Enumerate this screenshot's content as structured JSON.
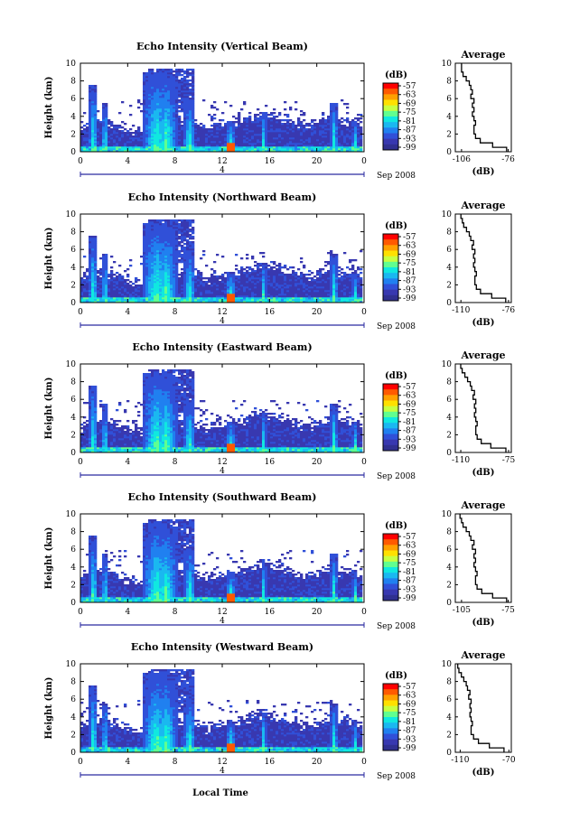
{
  "figure": {
    "xlabel": "Local Time",
    "date_label": "Sep 2008",
    "date_tick": "4",
    "colorbar_unit": "(dB)",
    "colorbar_ticks": [
      "-57",
      "-63",
      "-69",
      "-75",
      "-81",
      "-87",
      "-93",
      "-99"
    ],
    "colorbar_colors": [
      "#ff0000",
      "#ff5a00",
      "#ffa000",
      "#ffe000",
      "#c8ff40",
      "#60ff90",
      "#10e8e0",
      "#1ab8f0",
      "#2080f0",
      "#3050d8",
      "#3838b0",
      "#303090"
    ],
    "colors": {
      "echo_low": "#303090",
      "echo_mid": "#2080f0",
      "echo_high": "#ff2000",
      "profile_line": "#000000"
    }
  },
  "chart_data": [
    {
      "type": "heatmap",
      "title": "Echo Intensity (Vertical Beam)",
      "ylabel": "Height (km)",
      "xlim": [
        0,
        24
      ],
      "ylim": [
        0,
        10
      ],
      "xticks": [
        "0",
        "4",
        "8",
        "12",
        "16",
        "20",
        "0"
      ],
      "yticks": [
        "0",
        "2",
        "4",
        "6",
        "8",
        "10"
      ],
      "clim": [
        -99,
        -57
      ],
      "average_profile": {
        "title": "Average",
        "xlabel": "(dB)",
        "xticks": [
          "-106",
          "-76"
        ],
        "xlim": [
          -110,
          -74
        ],
        "yticks": [
          "0",
          "2",
          "4",
          "6",
          "8",
          "10"
        ],
        "height": [
          0.0,
          0.5,
          1.0,
          1.5,
          2.0,
          2.5,
          3.0,
          3.5,
          4.0,
          4.5,
          5.0,
          5.5,
          6.0,
          6.5,
          7.0,
          7.5,
          8.0,
          8.5,
          9.0,
          9.5
        ],
        "value": [
          -77,
          -86,
          -94,
          -97,
          -98,
          -98,
          -97,
          -98,
          -99,
          -98,
          -99,
          -98,
          -100,
          -99,
          -100,
          -101,
          -103,
          -105,
          -106,
          -106
        ]
      }
    },
    {
      "type": "heatmap",
      "title": "Echo Intensity (Northward Beam)",
      "ylabel": "Height (km)",
      "xlim": [
        0,
        24
      ],
      "ylim": [
        0,
        10
      ],
      "xticks": [
        "0",
        "4",
        "8",
        "12",
        "16",
        "20",
        "0"
      ],
      "yticks": [
        "0",
        "2",
        "4",
        "6",
        "8",
        "10"
      ],
      "clim": [
        -99,
        -57
      ],
      "average_profile": {
        "title": "Average",
        "xlabel": "(dB)",
        "xticks": [
          "-110",
          "-76"
        ],
        "xlim": [
          -114,
          -74
        ],
        "yticks": [
          "0",
          "2",
          "4",
          "6",
          "8",
          "10"
        ],
        "height": [
          0.0,
          0.5,
          1.0,
          1.5,
          2.0,
          2.5,
          3.0,
          3.5,
          4.0,
          4.5,
          5.0,
          5.5,
          6.0,
          6.5,
          7.0,
          7.5,
          8.0,
          8.5,
          9.0,
          9.5
        ],
        "value": [
          -78,
          -88,
          -96,
          -99,
          -100,
          -100,
          -99,
          -100,
          -101,
          -100,
          -101,
          -100,
          -102,
          -101,
          -103,
          -104,
          -106,
          -108,
          -109,
          -110
        ]
      }
    },
    {
      "type": "heatmap",
      "title": "Echo Intensity (Eastward Beam)",
      "ylabel": "Height (km)",
      "xlim": [
        0,
        24
      ],
      "ylim": [
        0,
        10
      ],
      "xticks": [
        "0",
        "4",
        "8",
        "12",
        "16",
        "20",
        "0"
      ],
      "yticks": [
        "0",
        "2",
        "4",
        "6",
        "8",
        "10"
      ],
      "clim": [
        -99,
        -57
      ],
      "average_profile": {
        "title": "Average",
        "xlabel": "(dB)",
        "xticks": [
          "-110",
          "-75"
        ],
        "xlim": [
          -114,
          -73
        ],
        "yticks": [
          "0",
          "2",
          "4",
          "6",
          "8",
          "10"
        ],
        "height": [
          0.0,
          0.5,
          1.0,
          1.5,
          2.0,
          2.5,
          3.0,
          3.5,
          4.0,
          4.5,
          5.0,
          5.5,
          6.0,
          6.5,
          7.0,
          7.5,
          8.0,
          8.5,
          9.0,
          9.5
        ],
        "value": [
          -77,
          -88,
          -95,
          -98,
          -99,
          -99,
          -98,
          -99,
          -100,
          -99,
          -100,
          -99,
          -101,
          -100,
          -102,
          -103,
          -105,
          -107,
          -109,
          -110
        ]
      }
    },
    {
      "type": "heatmap",
      "title": "Echo Intensity (Southward Beam)",
      "ylabel": "Height (km)",
      "xlim": [
        0,
        24
      ],
      "ylim": [
        0,
        10
      ],
      "xticks": [
        "0",
        "4",
        "8",
        "12",
        "16",
        "20",
        "0"
      ],
      "yticks": [
        "0",
        "2",
        "4",
        "6",
        "8",
        "10"
      ],
      "clim": [
        -99,
        -57
      ],
      "average_profile": {
        "title": "Average",
        "xlabel": "(dB)",
        "xticks": [
          "-105",
          "-75"
        ],
        "xlim": [
          -109,
          -73
        ],
        "yticks": [
          "0",
          "2",
          "4",
          "6",
          "8",
          "10"
        ],
        "height": [
          0.0,
          0.5,
          1.0,
          1.5,
          2.0,
          2.5,
          3.0,
          3.5,
          4.0,
          4.5,
          5.0,
          5.5,
          6.0,
          6.5,
          7.0,
          7.5,
          8.0,
          8.5,
          9.0,
          9.5
        ],
        "value": [
          -76,
          -85,
          -92,
          -95,
          -96,
          -96,
          -95,
          -96,
          -97,
          -96,
          -97,
          -96,
          -98,
          -97,
          -99,
          -100,
          -102,
          -104,
          -105,
          -106
        ]
      }
    },
    {
      "type": "heatmap",
      "title": "Echo Intensity (Westward Beam)",
      "ylabel": "Height (km)",
      "xlim": [
        0,
        24
      ],
      "ylim": [
        0,
        10
      ],
      "xticks": [
        "0",
        "4",
        "8",
        "12",
        "16",
        "20",
        "0"
      ],
      "yticks": [
        "0",
        "2",
        "4",
        "6",
        "8",
        "10"
      ],
      "clim": [
        -99,
        -57
      ],
      "average_profile": {
        "title": "Average",
        "xlabel": "(dB)",
        "xticks": [
          "-110",
          "-70"
        ],
        "xlim": [
          -114,
          -68
        ],
        "yticks": [
          "0",
          "2",
          "4",
          "6",
          "8",
          "10"
        ],
        "height": [
          0.0,
          0.5,
          1.0,
          1.5,
          2.0,
          2.5,
          3.0,
          3.5,
          4.0,
          4.5,
          5.0,
          5.5,
          6.0,
          6.5,
          7.0,
          7.5,
          8.0,
          8.5,
          9.0,
          9.5
        ],
        "value": [
          -74,
          -86,
          -95,
          -99,
          -101,
          -101,
          -100,
          -101,
          -102,
          -101,
          -102,
          -101,
          -103,
          -102,
          -104,
          -105,
          -107,
          -109,
          -111,
          -112
        ]
      }
    }
  ]
}
